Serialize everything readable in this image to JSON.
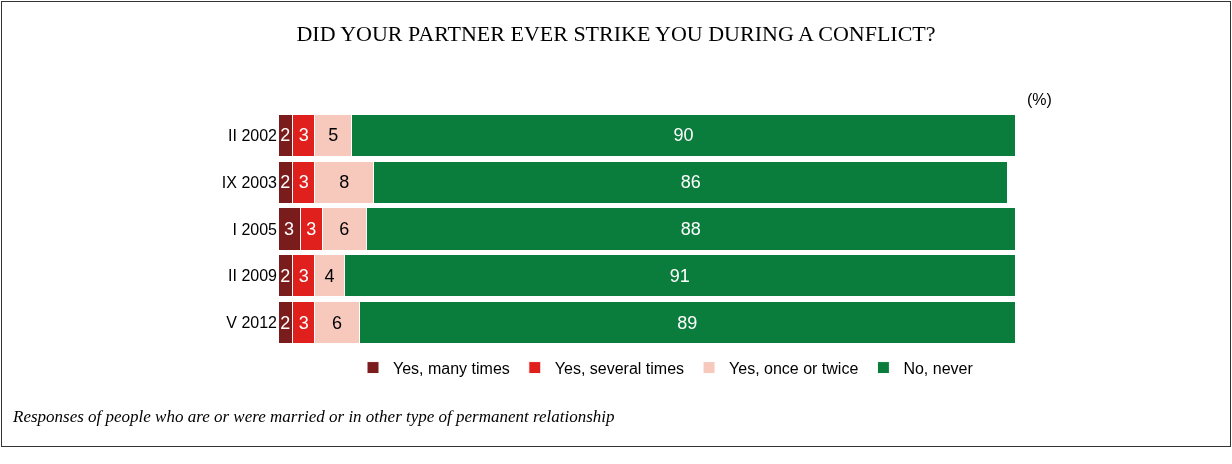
{
  "chart_data": {
    "type": "bar",
    "orientation": "horizontal",
    "stacked": true,
    "title": "DID YOUR PARTNER EVER STRIKE YOU DURING A CONFLICT?",
    "categories": [
      "II 2002",
      "IX 2003",
      "I 2005",
      "II 2009",
      "V 2012"
    ],
    "series": [
      {
        "name": "Yes, many times",
        "color": "#7a1c1c",
        "values": [
          2,
          2,
          3,
          2,
          2
        ]
      },
      {
        "name": "Yes, several times",
        "color": "#e0201c",
        "values": [
          3,
          3,
          3,
          3,
          3
        ]
      },
      {
        "name": "Yes, once or twice",
        "color": "#f6c9bc",
        "values": [
          5,
          8,
          6,
          4,
          6
        ]
      },
      {
        "name": "No, never",
        "color": "#0a7d3c",
        "values": [
          90,
          86,
          88,
          91,
          89
        ]
      }
    ],
    "data_labels": true,
    "legend": "bottom",
    "grid": false,
    "annotations": [
      "(%)",
      "Responses of people who are or were married or in other type of permanent relationship"
    ]
  }
}
